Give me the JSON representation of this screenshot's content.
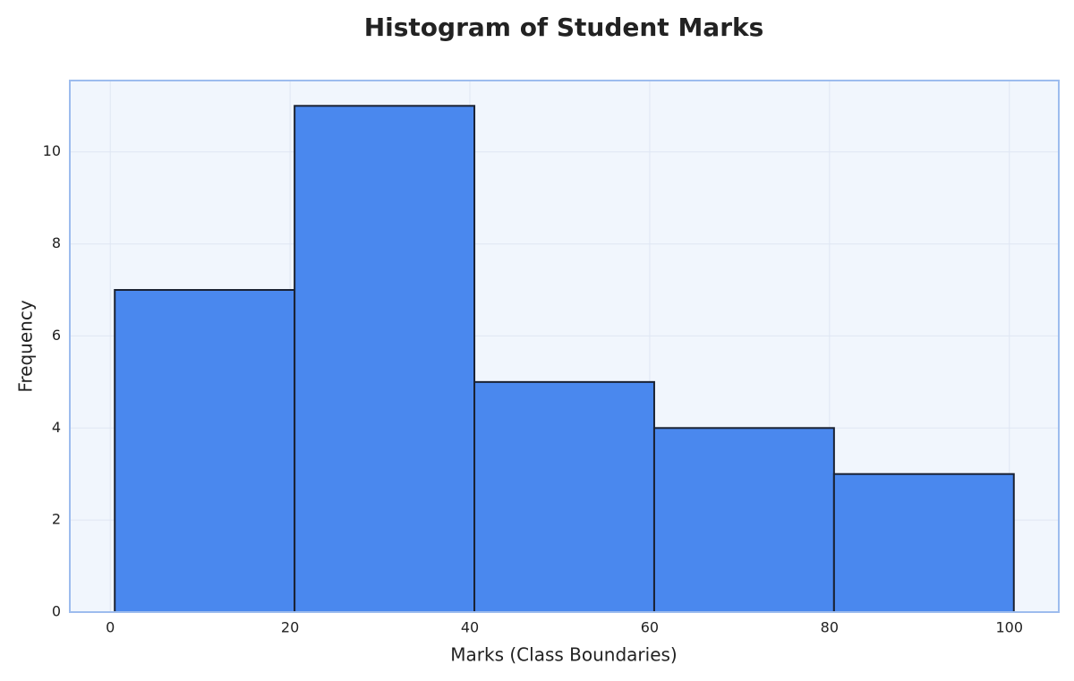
{
  "chart_data": {
    "type": "histogram",
    "title": "Histogram of Student Marks",
    "x_label": "Marks (Class Boundaries)",
    "y_label": "Frequency",
    "bins": [
      0.5,
      20.5,
      40.5,
      60.5,
      80.5,
      100.5
    ],
    "values": [
      7,
      11,
      5,
      4,
      3
    ],
    "color": "#4a88ee",
    "edge_color": "#1a2233",
    "xlim": [
      -4.5,
      105.5
    ],
    "ylim": [
      0,
      11.55
    ],
    "xticks": [
      0,
      20,
      40,
      60,
      80,
      100
    ],
    "yticks": [
      0,
      2,
      4,
      6,
      8,
      10
    ],
    "grid": true
  }
}
